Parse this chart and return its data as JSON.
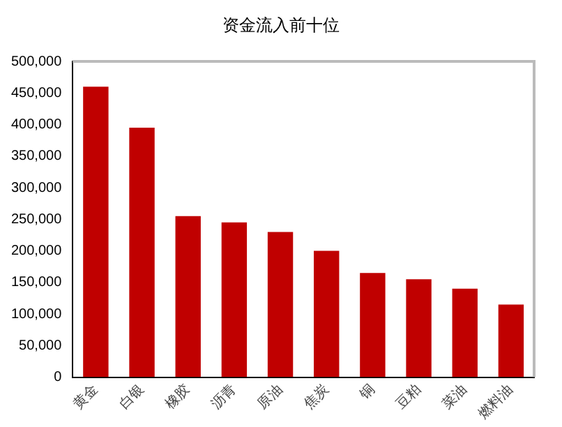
{
  "chart_data": {
    "type": "bar",
    "title": "资金流入前十位",
    "categories": [
      "黄金",
      "白银",
      "橡胶",
      "沥青",
      "原油",
      "焦炭",
      "铜",
      "豆粕",
      "菜油",
      "燃料油"
    ],
    "values": [
      460000,
      395000,
      255000,
      245000,
      230000,
      200000,
      165000,
      155000,
      140000,
      115000
    ],
    "color": "#c00000",
    "ylim": [
      0,
      500000
    ],
    "yticks": [
      {
        "value": 0,
        "label": "0"
      },
      {
        "value": 50000,
        "label": "50,000"
      },
      {
        "value": 100000,
        "label": "100,000"
      },
      {
        "value": 150000,
        "label": "150,000"
      },
      {
        "value": 200000,
        "label": "200,000"
      },
      {
        "value": 250000,
        "label": "250,000"
      },
      {
        "value": 300000,
        "label": "300,000"
      },
      {
        "value": 350000,
        "label": "350,000"
      },
      {
        "value": 400000,
        "label": "400,000"
      },
      {
        "value": 450000,
        "label": "450,000"
      },
      {
        "value": 500000,
        "label": "500,000"
      }
    ],
    "grid": false,
    "legend": false
  }
}
